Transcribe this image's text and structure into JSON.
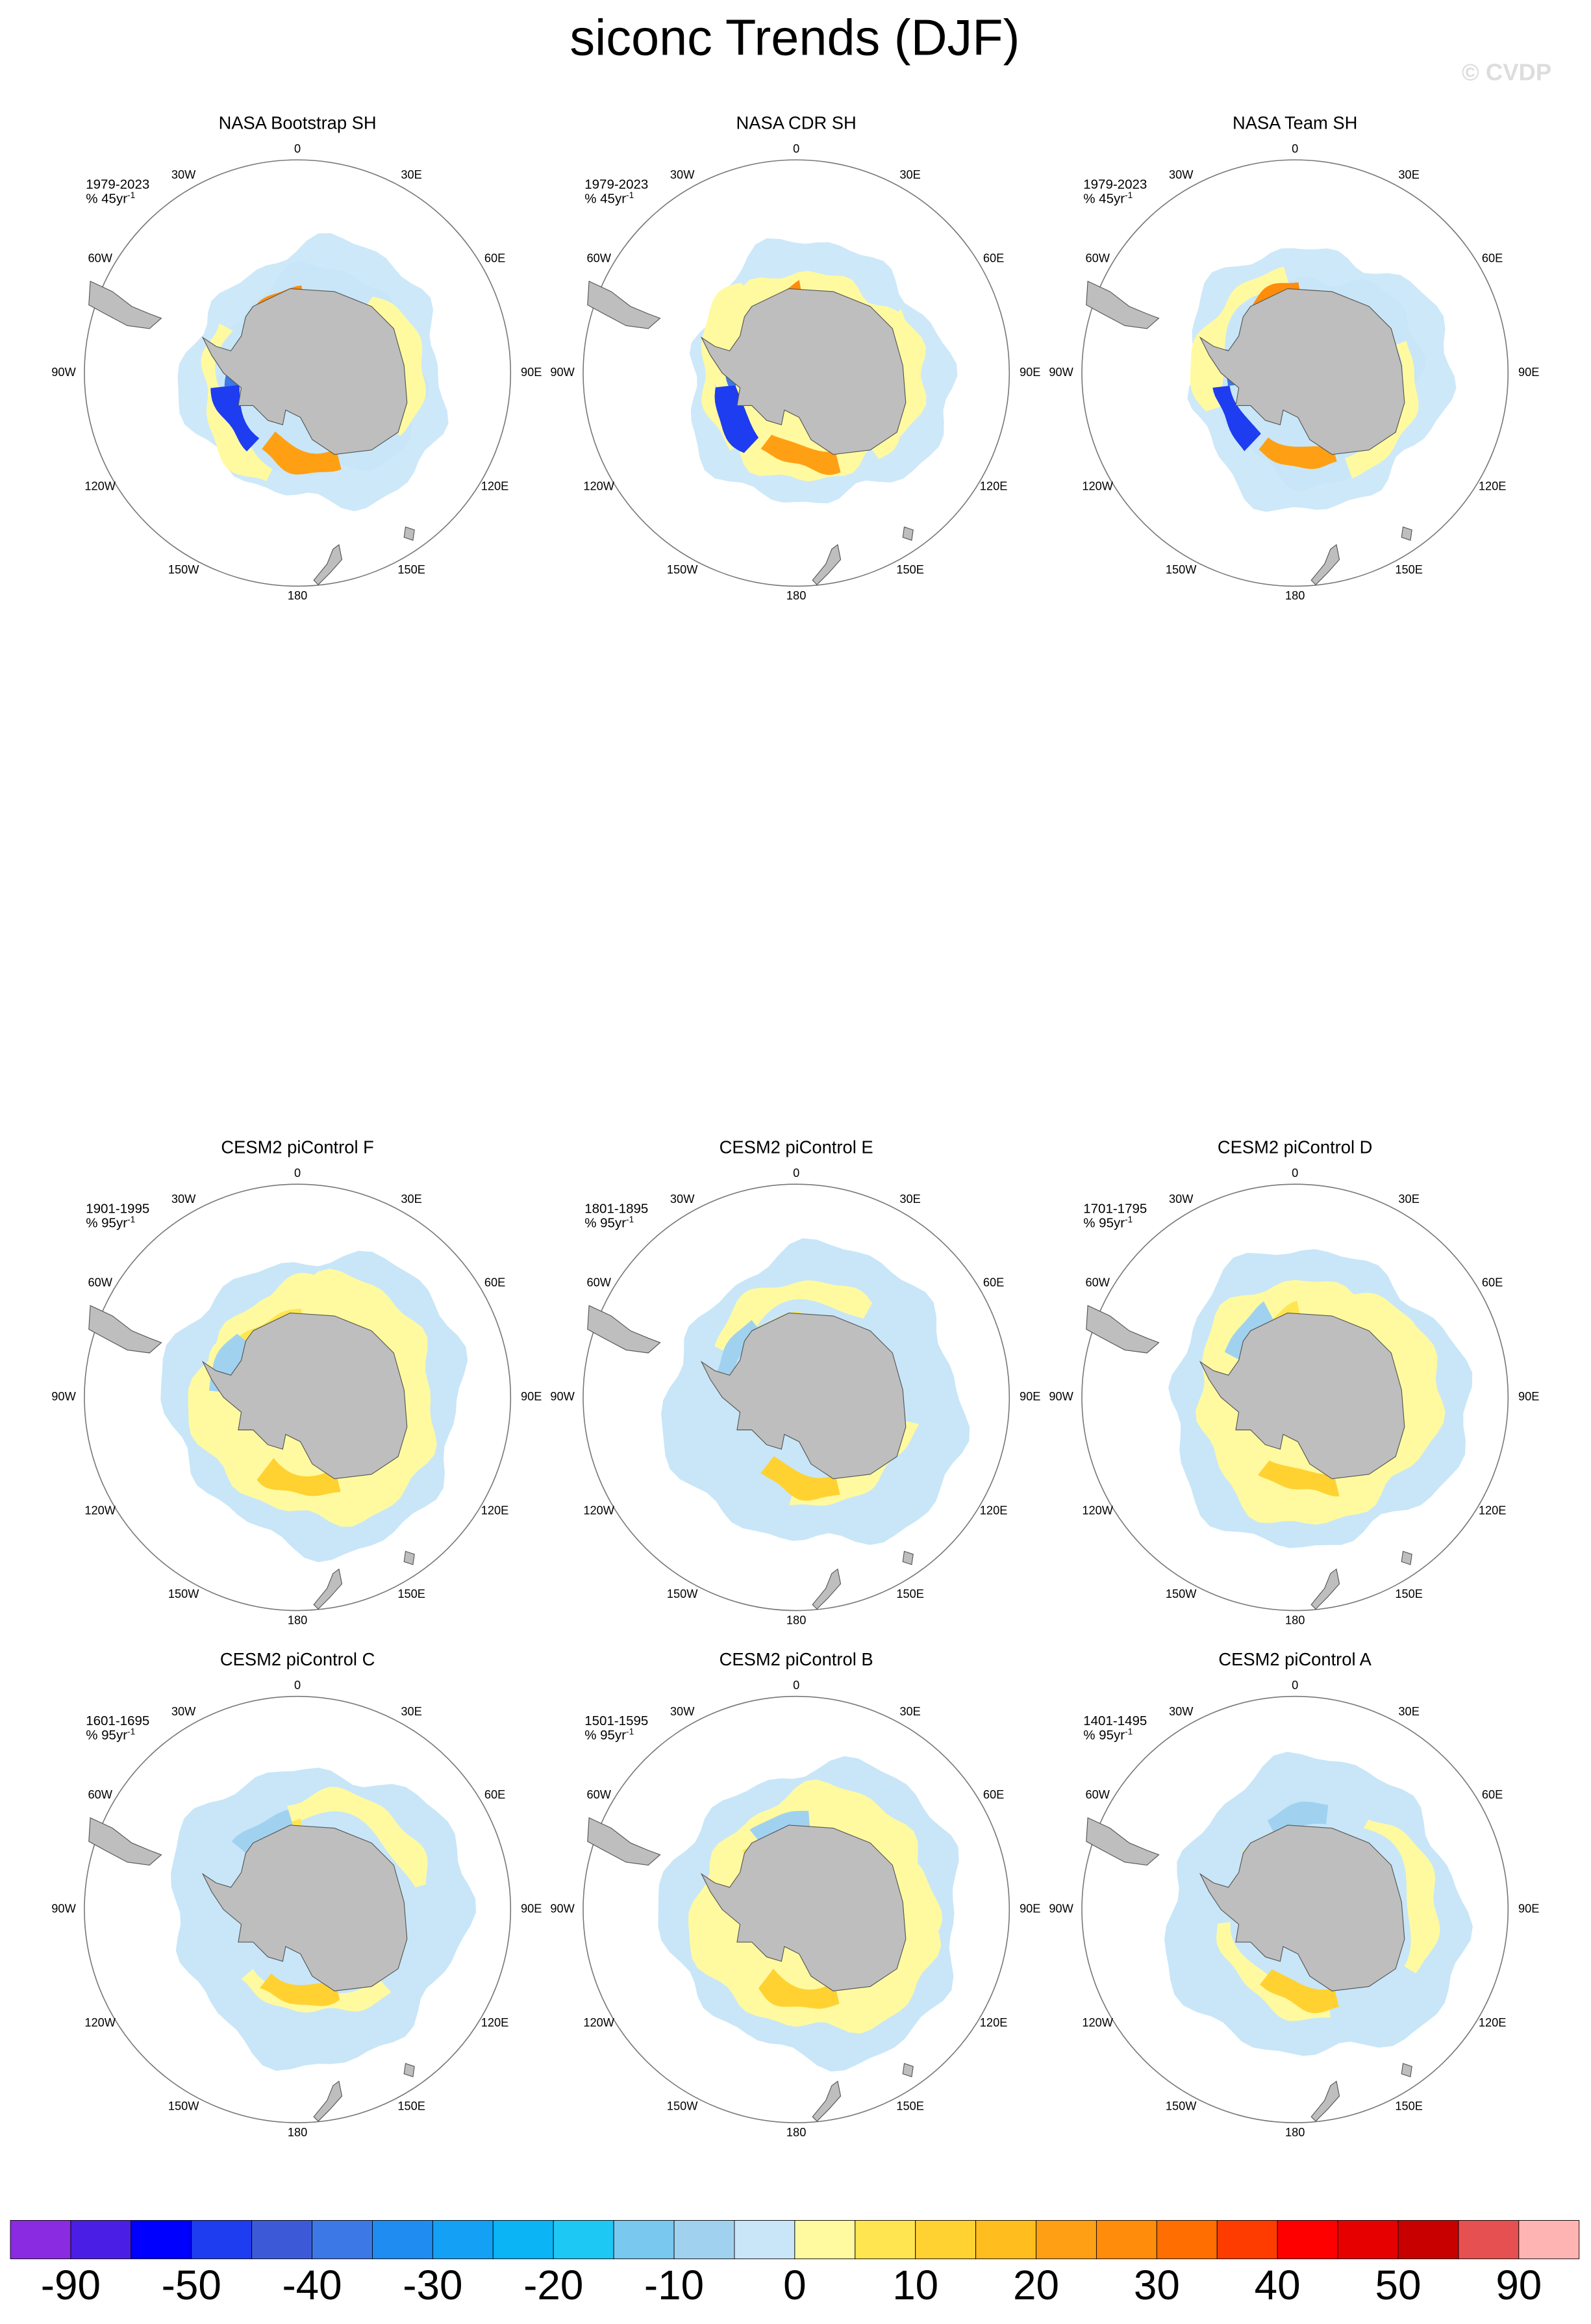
{
  "title": "siconc Trends (DJF)",
  "watermark": "© CVDP",
  "longitude_labels": [
    "0",
    "30E",
    "60E",
    "90E",
    "120E",
    "150E",
    "180",
    "150W",
    "120W",
    "90W",
    "60W",
    "30W"
  ],
  "panels": [
    {
      "title": "NASA Bootstrap SH",
      "period": "1979-2023",
      "units": "% 45yr",
      "units_exponent": "-1"
    },
    {
      "title": "NASA CDR SH",
      "period": "1979-2023",
      "units": "% 45yr",
      "units_exponent": "-1"
    },
    {
      "title": "NASA Team SH",
      "period": "1979-2023",
      "units": "% 45yr",
      "units_exponent": "-1"
    },
    {
      "title": "CESM2 piControl F",
      "period": "1901-1995",
      "units": "% 95yr",
      "units_exponent": "-1"
    },
    {
      "title": "CESM2 piControl E",
      "period": "1801-1895",
      "units": "% 95yr",
      "units_exponent": "-1"
    },
    {
      "title": "CESM2 piControl D",
      "period": "1701-1795",
      "units": "% 95yr",
      "units_exponent": "-1"
    },
    {
      "title": "CESM2 piControl C",
      "period": "1601-1695",
      "units": "% 95yr",
      "units_exponent": "-1"
    },
    {
      "title": "CESM2 piControl B",
      "period": "1501-1595",
      "units": "% 95yr",
      "units_exponent": "-1"
    },
    {
      "title": "CESM2 piControl A",
      "period": "1401-1495",
      "units": "% 95yr",
      "units_exponent": "-1"
    }
  ],
  "colorbar": {
    "colors": [
      "#8a2be2",
      "#4b1ee6",
      "#0000ff",
      "#1e3cf0",
      "#3c5ad8",
      "#3c78e6",
      "#1e8cf0",
      "#14a0f5",
      "#0ab4f5",
      "#1ec8f5",
      "#78c8f0",
      "#a0d2f0",
      "#c8e6f8",
      "#fffaa0",
      "#ffe650",
      "#ffd232",
      "#ffbe1e",
      "#ffa014",
      "#ff8c0a",
      "#ff6e00",
      "#ff3c00",
      "#ff0000",
      "#e60000",
      "#c80000",
      "#e65050",
      "#ffb4b4"
    ],
    "labels": [
      -90,
      -50,
      -40,
      -30,
      -20,
      -10,
      0,
      10,
      20,
      30,
      40,
      50,
      90
    ]
  }
}
